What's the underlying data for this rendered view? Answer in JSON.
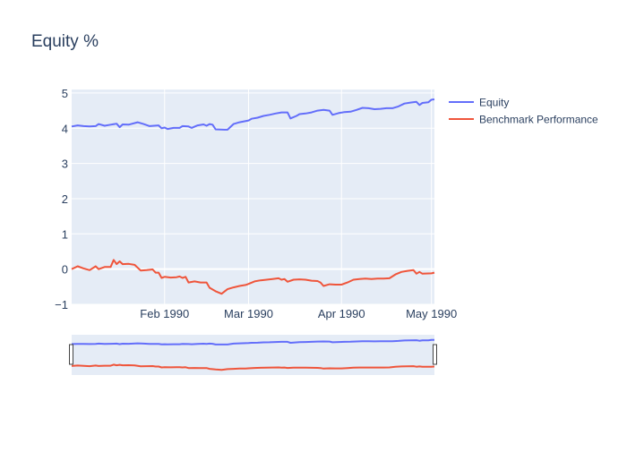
{
  "chart_data": {
    "type": "line",
    "title": "Equity %",
    "xlabel": "",
    "ylabel": "",
    "x_range": [
      "1990-01-01",
      "1990-05-02"
    ],
    "ylim": [
      -1,
      5.1
    ],
    "y_ticks": [
      -1,
      0,
      1,
      2,
      3,
      4,
      5
    ],
    "x_ticks": [
      {
        "date": "1990-02-01",
        "label": "Feb 1990"
      },
      {
        "date": "1990-03-01",
        "label": "Mar 1990"
      },
      {
        "date": "1990-04-01",
        "label": "Apr 1990"
      },
      {
        "date": "1990-05-01",
        "label": "May 1990"
      }
    ],
    "grid": true,
    "legend_position": "top-right",
    "range_slider": true,
    "series": [
      {
        "name": "Equity",
        "color": "#636efa",
        "points": [
          [
            "1990-01-01",
            4.05
          ],
          [
            "1990-01-03",
            4.08
          ],
          [
            "1990-01-05",
            4.06
          ],
          [
            "1990-01-07",
            4.05
          ],
          [
            "1990-01-09",
            4.06
          ],
          [
            "1990-01-10",
            4.12
          ],
          [
            "1990-01-12",
            4.07
          ],
          [
            "1990-01-14",
            4.1
          ],
          [
            "1990-01-16",
            4.13
          ],
          [
            "1990-01-17",
            4.03
          ],
          [
            "1990-01-18",
            4.11
          ],
          [
            "1990-01-20",
            4.1
          ],
          [
            "1990-01-23",
            4.17
          ],
          [
            "1990-01-25",
            4.12
          ],
          [
            "1990-01-27",
            4.06
          ],
          [
            "1990-01-30",
            4.08
          ],
          [
            "1990-01-31",
            4.0
          ],
          [
            "1990-02-01",
            4.02
          ],
          [
            "1990-02-02",
            3.98
          ],
          [
            "1990-02-04",
            4.01
          ],
          [
            "1990-02-06",
            4.01
          ],
          [
            "1990-02-07",
            4.06
          ],
          [
            "1990-02-09",
            4.05
          ],
          [
            "1990-02-10",
            4.01
          ],
          [
            "1990-02-12",
            4.08
          ],
          [
            "1990-02-14",
            4.11
          ],
          [
            "1990-02-15",
            4.07
          ],
          [
            "1990-02-16",
            4.12
          ],
          [
            "1990-02-17",
            4.1
          ],
          [
            "1990-02-18",
            3.97
          ],
          [
            "1990-02-21",
            3.96
          ],
          [
            "1990-02-22",
            3.96
          ],
          [
            "1990-02-24",
            4.12
          ],
          [
            "1990-02-26",
            4.17
          ],
          [
            "1990-03-01",
            4.22
          ],
          [
            "1990-03-02",
            4.27
          ],
          [
            "1990-03-04",
            4.3
          ],
          [
            "1990-03-06",
            4.35
          ],
          [
            "1990-03-08",
            4.38
          ],
          [
            "1990-03-10",
            4.42
          ],
          [
            "1990-03-12",
            4.45
          ],
          [
            "1990-03-14",
            4.45
          ],
          [
            "1990-03-15",
            4.28
          ],
          [
            "1990-03-17",
            4.35
          ],
          [
            "1990-03-18",
            4.4
          ],
          [
            "1990-03-20",
            4.42
          ],
          [
            "1990-03-22",
            4.45
          ],
          [
            "1990-03-24",
            4.5
          ],
          [
            "1990-03-26",
            4.52
          ],
          [
            "1990-03-28",
            4.5
          ],
          [
            "1990-03-29",
            4.38
          ],
          [
            "1990-03-31",
            4.43
          ],
          [
            "1990-04-02",
            4.46
          ],
          [
            "1990-04-04",
            4.47
          ],
          [
            "1990-04-06",
            4.52
          ],
          [
            "1990-04-08",
            4.58
          ],
          [
            "1990-04-10",
            4.57
          ],
          [
            "1990-04-12",
            4.54
          ],
          [
            "1990-04-14",
            4.55
          ],
          [
            "1990-04-16",
            4.57
          ],
          [
            "1990-04-18",
            4.57
          ],
          [
            "1990-04-20",
            4.62
          ],
          [
            "1990-04-22",
            4.7
          ],
          [
            "1990-04-24",
            4.73
          ],
          [
            "1990-04-26",
            4.75
          ],
          [
            "1990-04-27",
            4.66
          ],
          [
            "1990-04-28",
            4.72
          ],
          [
            "1990-04-30",
            4.74
          ],
          [
            "1990-05-01",
            4.81
          ],
          [
            "1990-05-02",
            4.82
          ]
        ]
      },
      {
        "name": "Benchmark Performance",
        "color": "#ef553b",
        "points": [
          [
            "1990-01-01",
            0.0
          ],
          [
            "1990-01-03",
            0.08
          ],
          [
            "1990-01-05",
            0.02
          ],
          [
            "1990-01-07",
            -0.03
          ],
          [
            "1990-01-09",
            0.08
          ],
          [
            "1990-01-10",
            0.0
          ],
          [
            "1990-01-12",
            0.06
          ],
          [
            "1990-01-14",
            0.06
          ],
          [
            "1990-01-15",
            0.26
          ],
          [
            "1990-01-16",
            0.14
          ],
          [
            "1990-01-17",
            0.22
          ],
          [
            "1990-01-18",
            0.14
          ],
          [
            "1990-01-20",
            0.15
          ],
          [
            "1990-01-22",
            0.12
          ],
          [
            "1990-01-24",
            -0.04
          ],
          [
            "1990-01-26",
            -0.03
          ],
          [
            "1990-01-28",
            -0.01
          ],
          [
            "1990-01-29",
            -0.1
          ],
          [
            "1990-01-30",
            -0.1
          ],
          [
            "1990-01-31",
            -0.25
          ],
          [
            "1990-02-01",
            -0.22
          ],
          [
            "1990-02-03",
            -0.24
          ],
          [
            "1990-02-05",
            -0.23
          ],
          [
            "1990-02-06",
            -0.21
          ],
          [
            "1990-02-07",
            -0.25
          ],
          [
            "1990-02-08",
            -0.22
          ],
          [
            "1990-02-09",
            -0.38
          ],
          [
            "1990-02-11",
            -0.35
          ],
          [
            "1990-02-13",
            -0.38
          ],
          [
            "1990-02-15",
            -0.38
          ],
          [
            "1990-02-16",
            -0.53
          ],
          [
            "1990-02-18",
            -0.63
          ],
          [
            "1990-02-20",
            -0.7
          ],
          [
            "1990-02-22",
            -0.57
          ],
          [
            "1990-02-24",
            -0.52
          ],
          [
            "1990-02-26",
            -0.48
          ],
          [
            "1990-02-28",
            -0.45
          ],
          [
            "1990-03-01",
            -0.42
          ],
          [
            "1990-03-03",
            -0.35
          ],
          [
            "1990-03-05",
            -0.32
          ],
          [
            "1990-03-07",
            -0.3
          ],
          [
            "1990-03-09",
            -0.28
          ],
          [
            "1990-03-11",
            -0.26
          ],
          [
            "1990-03-12",
            -0.3
          ],
          [
            "1990-03-13",
            -0.28
          ],
          [
            "1990-03-14",
            -0.36
          ],
          [
            "1990-03-16",
            -0.3
          ],
          [
            "1990-03-18",
            -0.29
          ],
          [
            "1990-03-20",
            -0.3
          ],
          [
            "1990-03-22",
            -0.33
          ],
          [
            "1990-03-24",
            -0.34
          ],
          [
            "1990-03-25",
            -0.38
          ],
          [
            "1990-03-26",
            -0.48
          ],
          [
            "1990-03-28",
            -0.43
          ],
          [
            "1990-03-30",
            -0.44
          ],
          [
            "1990-04-01",
            -0.44
          ],
          [
            "1990-04-03",
            -0.38
          ],
          [
            "1990-04-05",
            -0.3
          ],
          [
            "1990-04-07",
            -0.28
          ],
          [
            "1990-04-09",
            -0.27
          ],
          [
            "1990-04-11",
            -0.28
          ],
          [
            "1990-04-13",
            -0.27
          ],
          [
            "1990-04-15",
            -0.27
          ],
          [
            "1990-04-17",
            -0.26
          ],
          [
            "1990-04-19",
            -0.15
          ],
          [
            "1990-04-21",
            -0.08
          ],
          [
            "1990-04-23",
            -0.05
          ],
          [
            "1990-04-25",
            -0.03
          ],
          [
            "1990-04-26",
            -0.13
          ],
          [
            "1990-04-27",
            -0.08
          ],
          [
            "1990-04-28",
            -0.13
          ],
          [
            "1990-05-01",
            -0.12
          ],
          [
            "1990-05-02",
            -0.1
          ]
        ]
      }
    ]
  }
}
